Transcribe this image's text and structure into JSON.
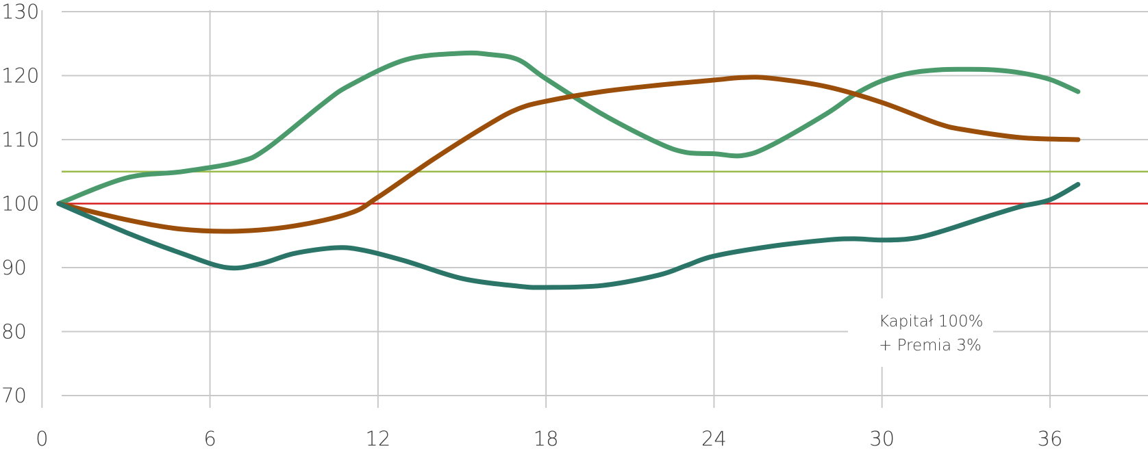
{
  "chart_data": {
    "type": "line",
    "title": "",
    "xlabel": "",
    "ylabel": "",
    "xlim": [
      -1.5,
      39.5
    ],
    "ylim": [
      70,
      130
    ],
    "x_ticks": [
      "0",
      "6",
      "12",
      "18",
      "24",
      "30",
      "36"
    ],
    "y_ticks": [
      "70",
      "80",
      "90",
      "100",
      "110",
      "120",
      "130"
    ],
    "grid": true,
    "reference_lines": [
      {
        "value": 100,
        "color": "#d61f1f"
      },
      {
        "value": 105,
        "color": "#9bbb4c"
      }
    ],
    "annotation": {
      "line1": "Kapitał 100%",
      "line2": "+ Premia 3%"
    },
    "series": [
      {
        "color": "#4a9a6c",
        "points": [
          [
            0.6,
            100
          ],
          [
            3,
            104
          ],
          [
            5,
            105
          ],
          [
            7,
            106.5
          ],
          [
            8,
            108.5
          ],
          [
            10,
            115.5
          ],
          [
            11,
            118.5
          ],
          [
            13,
            122.5
          ],
          [
            15,
            123.5
          ],
          [
            16,
            123.3
          ],
          [
            17,
            122.5
          ],
          [
            18,
            119.5
          ],
          [
            20,
            114
          ],
          [
            22,
            109.5
          ],
          [
            23,
            108
          ],
          [
            24,
            107.8
          ],
          [
            25,
            107.5
          ],
          [
            26,
            109
          ],
          [
            28,
            114
          ],
          [
            29,
            117
          ],
          [
            30,
            119.2
          ],
          [
            31,
            120.4
          ],
          [
            32,
            120.9
          ],
          [
            33,
            121
          ],
          [
            34,
            120.9
          ],
          [
            35,
            120.4
          ],
          [
            36,
            119.4
          ],
          [
            37,
            117.5
          ]
        ]
      },
      {
        "color": "#9a4e0a",
        "points": [
          [
            0.6,
            100
          ],
          [
            3,
            97.5
          ],
          [
            5,
            96
          ],
          [
            7,
            95.7
          ],
          [
            9,
            96.5
          ],
          [
            11,
            98.5
          ],
          [
            12,
            101
          ],
          [
            14,
            107
          ],
          [
            16,
            112.5
          ],
          [
            17,
            114.8
          ],
          [
            18,
            116
          ],
          [
            20,
            117.5
          ],
          [
            22,
            118.5
          ],
          [
            24,
            119.3
          ],
          [
            25,
            119.7
          ],
          [
            26,
            119.6
          ],
          [
            28,
            118.3
          ],
          [
            30,
            115.8
          ],
          [
            32,
            112.5
          ],
          [
            33,
            111.5
          ],
          [
            35,
            110.3
          ],
          [
            37,
            110
          ]
        ]
      },
      {
        "color": "#2a7468",
        "points": [
          [
            0.6,
            100
          ],
          [
            3,
            95.5
          ],
          [
            5,
            92.2
          ],
          [
            6.6,
            90
          ],
          [
            7.8,
            90.6
          ],
          [
            9,
            92.2
          ],
          [
            10.5,
            93.1
          ],
          [
            11.5,
            92.7
          ],
          [
            13,
            91
          ],
          [
            15,
            88.3
          ],
          [
            17,
            87.1
          ],
          [
            18,
            86.9
          ],
          [
            20,
            87.2
          ],
          [
            22,
            88.8
          ],
          [
            23,
            90.3
          ],
          [
            24,
            91.8
          ],
          [
            26,
            93.3
          ],
          [
            28,
            94.3
          ],
          [
            29,
            94.5
          ],
          [
            30,
            94.3
          ],
          [
            31,
            94.5
          ],
          [
            32,
            95.5
          ],
          [
            34,
            98.3
          ],
          [
            35,
            99.6
          ],
          [
            36,
            100.6
          ],
          [
            37,
            103
          ]
        ]
      }
    ]
  }
}
